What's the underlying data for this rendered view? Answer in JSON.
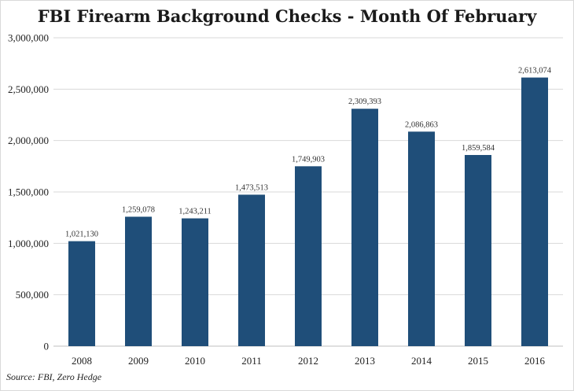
{
  "chart_data": {
    "type": "bar",
    "title": "FBI Firearm Background Checks - Month Of February",
    "xlabel": "",
    "ylabel": "",
    "categories": [
      "2008",
      "2009",
      "2010",
      "2011",
      "2012",
      "2013",
      "2014",
      "2015",
      "2016"
    ],
    "values": [
      1021130,
      1259078,
      1243211,
      1473513,
      1749903,
      2309393,
      2086863,
      1859584,
      2613074
    ],
    "data_labels": [
      "1,021,130",
      "1,259,078",
      "1,243,211",
      "1,473,513",
      "1,749,903",
      "2,309,393",
      "2,086,863",
      "1,859,584",
      "2,613,074"
    ],
    "ylim": [
      0,
      3000000
    ],
    "yticks": [
      0,
      500000,
      1000000,
      1500000,
      2000000,
      2500000,
      3000000
    ],
    "ytick_labels": [
      "0",
      "500,000",
      "1,000,000",
      "1,500,000",
      "2,000,000",
      "2,500,000",
      "3,000,000"
    ],
    "grid": true,
    "legend": "none",
    "bar_color": "#1f4e79",
    "grid_color": "#d9d9d9"
  },
  "source": "Source: FBI, Zero Hedge"
}
